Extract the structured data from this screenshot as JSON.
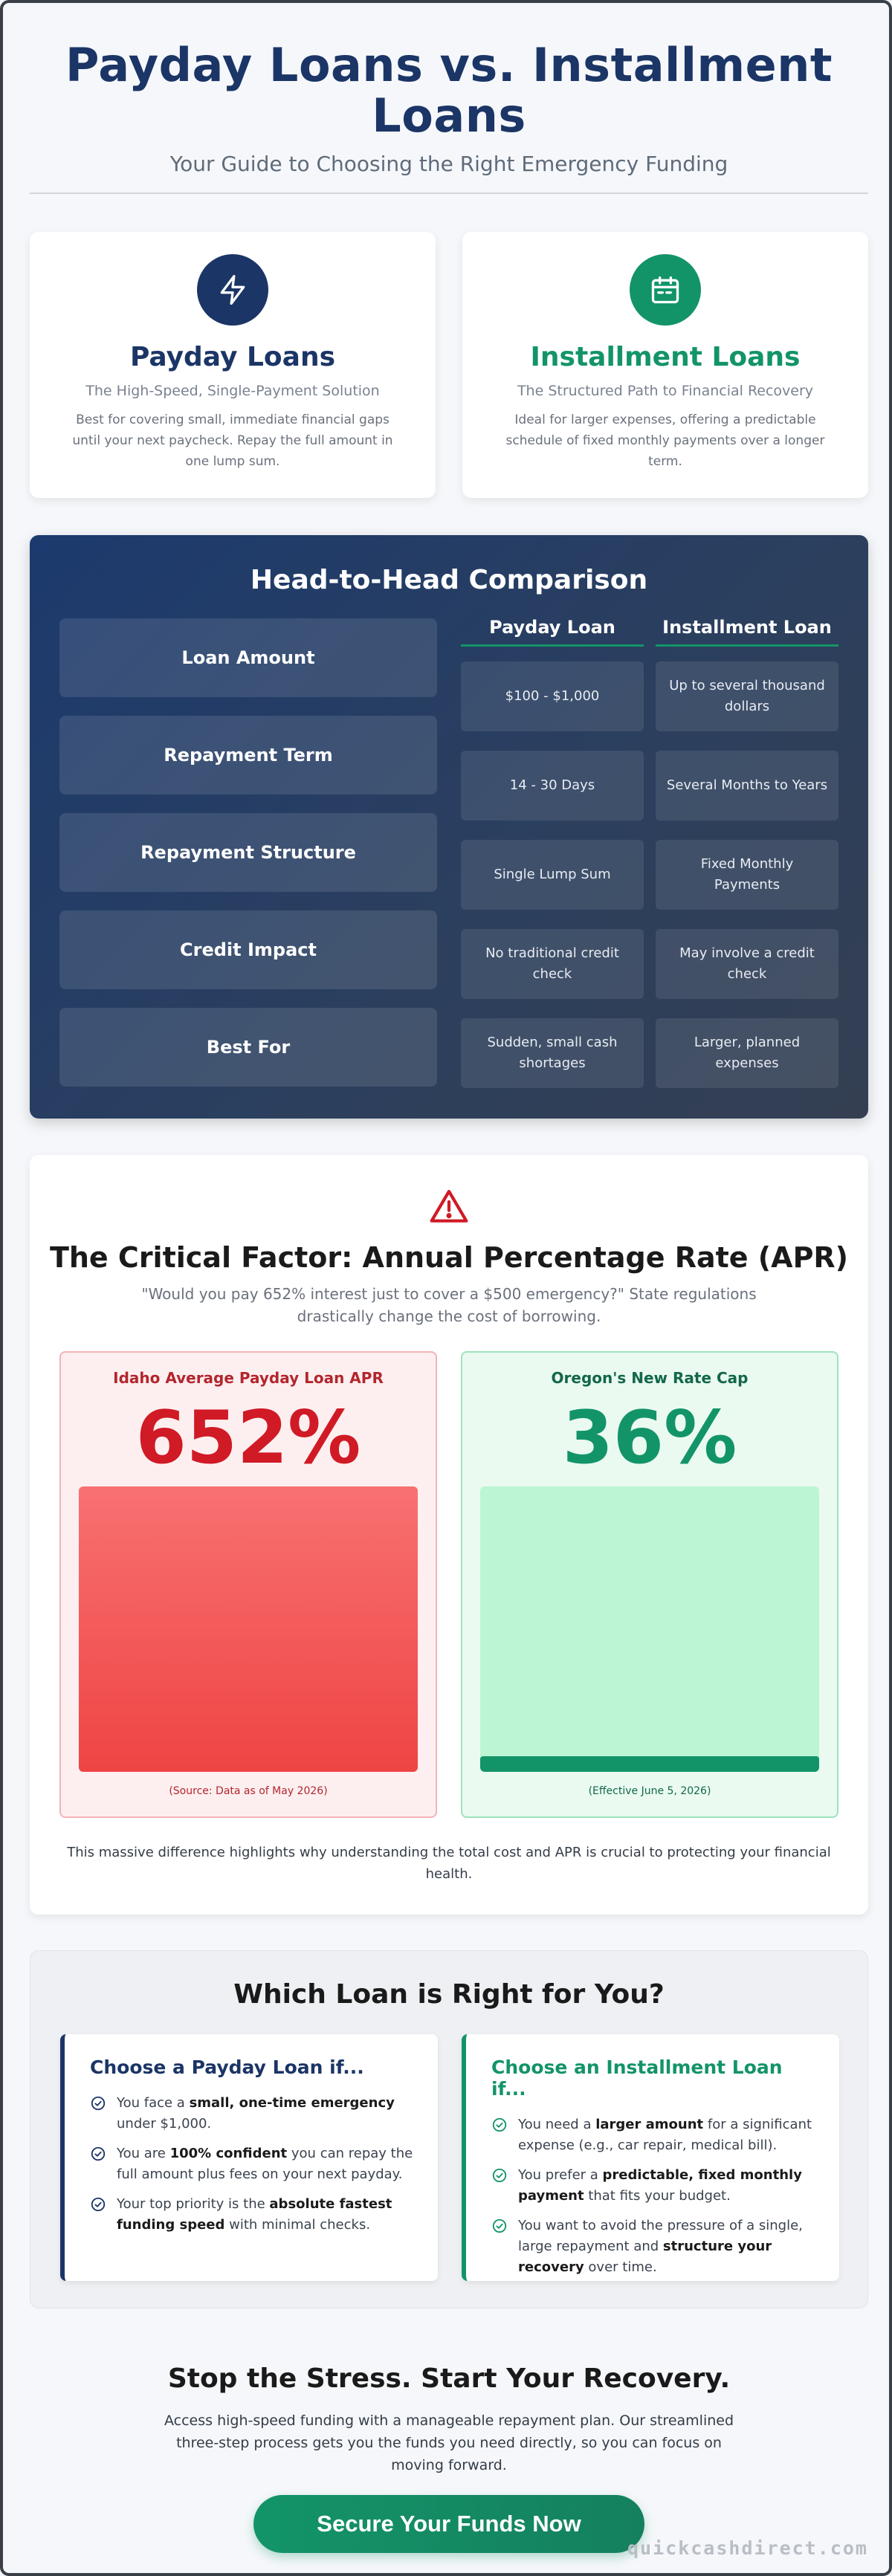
{
  "header": {
    "title": "Payday Loans vs. Installment Loans",
    "subtitle": "Your Guide to Choosing the Right Emergency Funding"
  },
  "loan_types": [
    {
      "icon": "lightning-icon",
      "title": "Payday Loans",
      "tagline": "The High-Speed, Single-Payment Solution",
      "description": "Best for covering small, immediate financial gaps until your next paycheck. Repay the full amount in one lump sum.",
      "accent": "#1b3566"
    },
    {
      "icon": "calendar-icon",
      "title": "Installment Loans",
      "tagline": "The Structured Path to Financial Recovery",
      "description": "Ideal for larger expenses, offering a predictable schedule of fixed monthly payments over a longer term.",
      "accent": "#139468"
    }
  ],
  "comparison": {
    "title": "Head-to-Head Comparison",
    "columns": [
      "Payday Loan",
      "Installment Loan"
    ],
    "rows": [
      {
        "label": "Loan Amount",
        "payday": "$100 - $1,000",
        "installment": "Up to several thousand dollars"
      },
      {
        "label": "Repayment Term",
        "payday": "14 - 30 Days",
        "installment": "Several Months to Years"
      },
      {
        "label": "Repayment Structure",
        "payday": "Single Lump Sum",
        "installment": "Fixed Monthly Payments"
      },
      {
        "label": "Credit Impact",
        "payday": "No traditional credit check",
        "installment": "May involve a credit check"
      },
      {
        "label": "Best For",
        "payday": "Sudden, small cash shortages",
        "installment": "Larger, planned expenses"
      }
    ]
  },
  "apr": {
    "icon": "warning-icon",
    "title": "The Critical Factor: Annual Percentage Rate (APR)",
    "quote": "\"Would you pay 652% interest just to cover a $500 emergency?\" State regulations drastically change the cost of borrowing.",
    "idaho": {
      "label": "Idaho Average Payday Loan APR",
      "value": "652%",
      "rate_percent": 652,
      "note": "(Source: Data as of May 2026)"
    },
    "oregon": {
      "label": "Oregon's New Rate Cap",
      "value": "36%",
      "rate_percent": 36,
      "note": "(Effective June 5, 2026)"
    },
    "footer": "This massive difference highlights why understanding the total cost and APR is crucial to protecting your financial health.",
    "colors": {
      "high": "#ef4444",
      "low": "#139468"
    }
  },
  "which": {
    "title": "Which Loan is Right for You?",
    "payday": {
      "title": "Choose a Payday Loan if...",
      "items": [
        {
          "pre": "You face a ",
          "bold": "small, one-time emergency",
          "post": " under $1,000."
        },
        {
          "pre": "You are ",
          "bold": "100% confident",
          "post": " you can repay the full amount plus fees on your next payday."
        },
        {
          "pre": "Your top priority is the ",
          "bold": "absolute fastest funding speed",
          "post": " with minimal checks."
        }
      ]
    },
    "installment": {
      "title": "Choose an Installment Loan if...",
      "items": [
        {
          "pre": "You need a ",
          "bold": "larger amount",
          "post": " for a significant expense (e.g., car repair, medical bill)."
        },
        {
          "pre": "You prefer a ",
          "bold": "predictable, fixed monthly payment",
          "post": " that fits your budget."
        },
        {
          "pre": "You want to avoid the pressure of a single, large repayment and ",
          "bold": "structure your recovery",
          "post": " over time."
        }
      ]
    }
  },
  "cta": {
    "title": "Stop the Stress. Start Your Recovery.",
    "text": "Access high-speed funding with a manageable repayment plan. Our streamlined three-step process gets you the funds you need directly, so you can focus on moving forward.",
    "button": "Secure Your Funds Now"
  },
  "watermark": "quickcashdirect.com"
}
